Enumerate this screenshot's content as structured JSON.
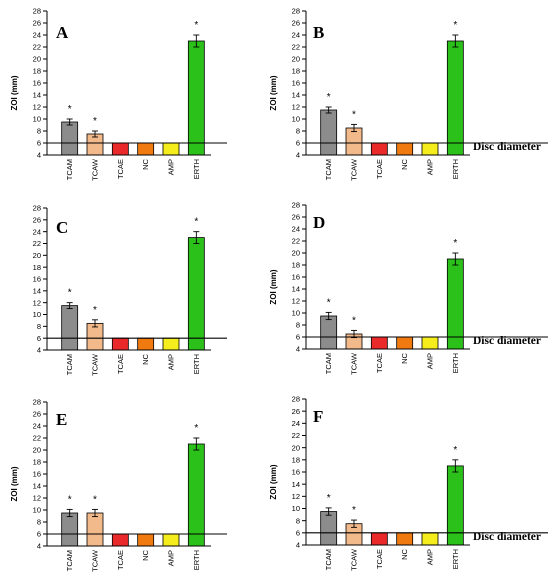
{
  "chart_data": [
    {
      "panel": "A",
      "type": "bar",
      "ylabel": "ZOI (mm)",
      "ylim": [
        4,
        28
      ],
      "yticks": [
        "4",
        "6",
        "8",
        "10",
        "12",
        "14",
        "16",
        "18",
        "20",
        "22",
        "24",
        "26",
        "28"
      ],
      "categories": [
        "TCAM",
        "TCAW",
        "TCAE",
        "NC",
        "AMP",
        "ERTH"
      ],
      "values": [
        9.5,
        7.5,
        6,
        6,
        6,
        23
      ],
      "errors": [
        0.5,
        0.5,
        0,
        0,
        0,
        1
      ],
      "significance": [
        "*",
        "*",
        "",
        "",
        "",
        "*"
      ],
      "reference_line": 6,
      "reference_label": ""
    },
    {
      "panel": "B",
      "type": "bar",
      "ylabel": "ZOI (mm)",
      "ylim": [
        4,
        28
      ],
      "yticks": [
        "4",
        "6",
        "8",
        "10",
        "12",
        "14",
        "16",
        "18",
        "20",
        "22",
        "24",
        "26",
        "28"
      ],
      "categories": [
        "TCAM",
        "TCAW",
        "TCAE",
        "NC",
        "AMP",
        "ERTH"
      ],
      "values": [
        11.5,
        8.5,
        6,
        6,
        6,
        23
      ],
      "errors": [
        0.5,
        0.6,
        0,
        0,
        0,
        1
      ],
      "significance": [
        "*",
        "*",
        "",
        "",
        "",
        "*"
      ],
      "reference_line": 6,
      "reference_label": "Disc diameter"
    },
    {
      "panel": "C",
      "type": "bar",
      "ylabel": "",
      "ylim": [
        4,
        28
      ],
      "yticks": [
        "4",
        "6",
        "8",
        "10",
        "12",
        "14",
        "16",
        "18",
        "20",
        "22",
        "24",
        "26",
        "28"
      ],
      "categories": [
        "TCAM",
        "TCAW",
        "TCAE",
        "NC",
        "AMP",
        "ERTH"
      ],
      "values": [
        11.5,
        8.5,
        6,
        6,
        6,
        23
      ],
      "errors": [
        0.5,
        0.6,
        0,
        0,
        0,
        1
      ],
      "significance": [
        "*",
        "*",
        "",
        "",
        "",
        "*"
      ],
      "reference_line": 6,
      "reference_label": ""
    },
    {
      "panel": "D",
      "type": "bar",
      "ylabel": "ZOI (mm)",
      "ylim": [
        4,
        28
      ],
      "yticks": [
        "4",
        "6",
        "8",
        "10",
        "12",
        "14",
        "16",
        "18",
        "20",
        "22",
        "24",
        "26",
        "28"
      ],
      "categories": [
        "TCAM",
        "TCAW",
        "TCAE",
        "NC",
        "AMP",
        "ERTH"
      ],
      "values": [
        9.5,
        6.5,
        6,
        6,
        6,
        19
      ],
      "errors": [
        0.6,
        0.6,
        0,
        0,
        0,
        1
      ],
      "significance": [
        "*",
        "*",
        "",
        "",
        "",
        "*"
      ],
      "reference_line": 6,
      "reference_label": "Disc diameter"
    },
    {
      "panel": "E",
      "type": "bar",
      "ylabel": "ZOI (mm)",
      "ylim": [
        4,
        28
      ],
      "yticks": [
        "4",
        "6",
        "8",
        "10",
        "12",
        "14",
        "16",
        "18",
        "20",
        "22",
        "24",
        "26",
        "28"
      ],
      "categories": [
        "TCAM",
        "TCAW",
        "TCAE",
        "NC",
        "AMP",
        "ERTH"
      ],
      "values": [
        9.5,
        9.5,
        6,
        6,
        6,
        21
      ],
      "errors": [
        0.6,
        0.6,
        0,
        0,
        0,
        1
      ],
      "significance": [
        "*",
        "*",
        "",
        "",
        "",
        "*"
      ],
      "reference_line": 6,
      "reference_label": ""
    },
    {
      "panel": "F",
      "type": "bar",
      "ylabel": "ZOI (mm)",
      "ylim": [
        4,
        28
      ],
      "yticks": [
        "4",
        "6",
        "8",
        "10",
        "12",
        "14",
        "16",
        "18",
        "20",
        "22",
        "24",
        "26",
        "28"
      ],
      "categories": [
        "TCAM",
        "TCAW",
        "TCAE",
        "NC",
        "AMP",
        "ERTH"
      ],
      "values": [
        9.5,
        7.5,
        6,
        6,
        6,
        17
      ],
      "errors": [
        0.6,
        0.6,
        0,
        0,
        0,
        1
      ],
      "significance": [
        "*",
        "*",
        "",
        "",
        "",
        "*"
      ],
      "reference_line": 6,
      "reference_label": "Disc diameter"
    }
  ],
  "colors": {
    "TCAM": "#8c8c8c",
    "TCAW": "#f2b98a",
    "TCAE": "#ea2a2a",
    "NC": "#f07a10",
    "AMP": "#f5ee1c",
    "ERTH": "#2bc01a"
  }
}
